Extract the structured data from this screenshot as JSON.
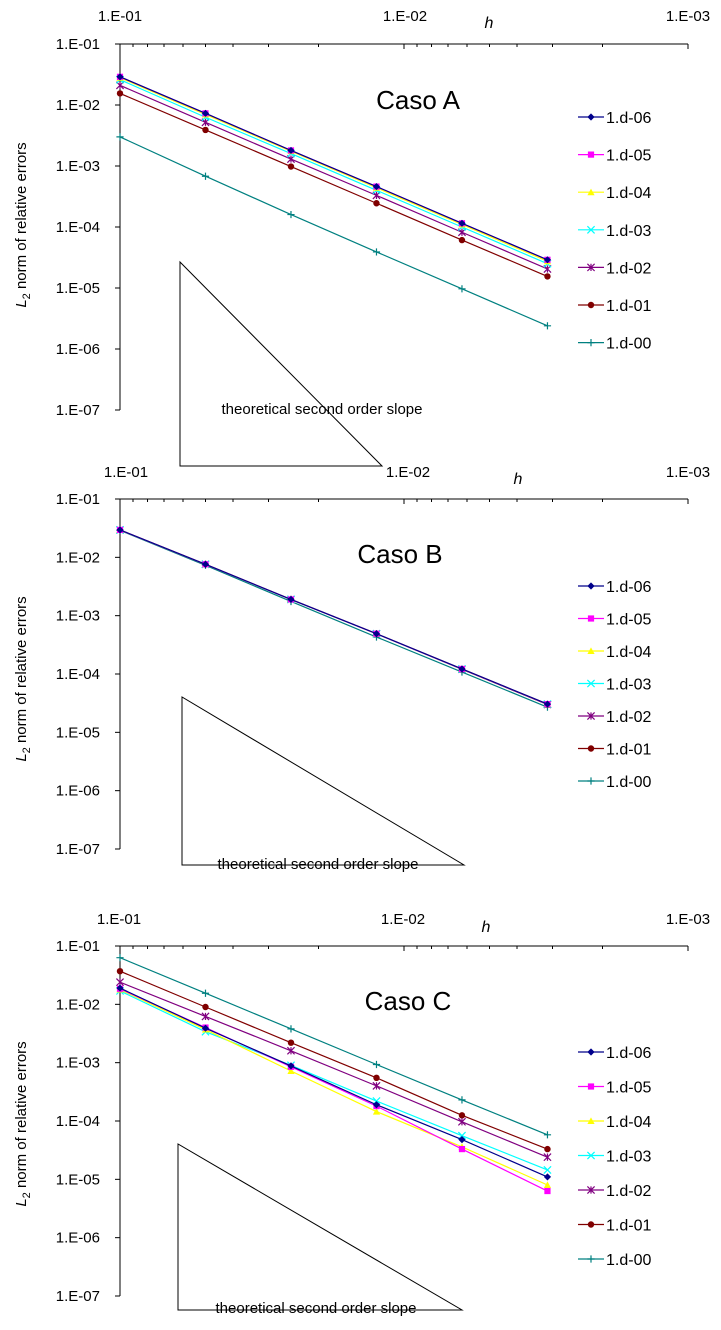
{
  "colors": {
    "1.d-06": "#00008b",
    "1.d-05": "#ff00ff",
    "1.d-04": "#ffff00",
    "1.d-03": "#00ffff",
    "1.d-02": "#800080",
    "1.d-01": "#800000",
    "1.d-00": "#008080"
  },
  "chart_data": [
    {
      "type": "line",
      "title": "Caso A",
      "xlabel": "h",
      "ylabel_main": "L",
      "ylabel_sub": "2",
      "ylabel_rest": " norm of relative errors",
      "x_scale": "log",
      "y_scale": "log",
      "x_reversed": true,
      "xlim": [
        0.1,
        0.001
      ],
      "ylim": [
        1e-07,
        0.1
      ],
      "x_ticks": [
        "1.E-01",
        "1.E-02",
        "1.E-03"
      ],
      "y_ticks": [
        "1.E-01",
        "1.E-02",
        "1.E-03",
        "1.E-04",
        "1.E-05",
        "1.E-06",
        "1.E-07"
      ],
      "slope_label": "theoretical second order slope",
      "x": [
        0.1,
        0.05,
        0.025,
        0.0125,
        0.00625,
        0.003125
      ],
      "series": [
        {
          "name": "1.d-06",
          "marker": "diamond",
          "values": [
            0.029,
            0.0073,
            0.0018,
            0.00046,
            0.000115,
            2.9e-05
          ]
        },
        {
          "name": "1.d-05",
          "marker": "square",
          "values": [
            0.029,
            0.0073,
            0.0018,
            0.00046,
            0.000115,
            2.9e-05
          ]
        },
        {
          "name": "1.d-04",
          "marker": "triangle",
          "values": [
            0.028,
            0.007,
            0.00175,
            0.00044,
            0.00011,
            2.75e-05
          ]
        },
        {
          "name": "1.d-03",
          "marker": "x",
          "values": [
            0.026,
            0.0063,
            0.0016,
            0.0004,
            0.0001,
            2.5e-05
          ]
        },
        {
          "name": "1.d-02",
          "marker": "star",
          "values": [
            0.021,
            0.0052,
            0.0013,
            0.00033,
            8.2e-05,
            2.05e-05
          ]
        },
        {
          "name": "1.d-01",
          "marker": "circle",
          "values": [
            0.0155,
            0.0039,
            0.00098,
            0.000245,
            6.1e-05,
            1.55e-05
          ]
        },
        {
          "name": "1.d-00",
          "marker": "plus",
          "values": [
            0.003,
            0.00068,
            0.00016,
            3.9e-05,
            9.7e-06,
            2.4e-06
          ]
        }
      ]
    },
    {
      "type": "line",
      "title": "Caso B",
      "xlabel": "h",
      "ylabel_main": "L",
      "ylabel_sub": "2",
      "ylabel_rest": " norm of relative errors",
      "x_scale": "log",
      "y_scale": "log",
      "x_reversed": true,
      "xlim": [
        0.1,
        0.001
      ],
      "ylim": [
        1e-07,
        0.1
      ],
      "x_ticks": [
        "1.E-01",
        "1.E-02",
        "1.E-03"
      ],
      "y_ticks": [
        "1.E-01",
        "1.E-02",
        "1.E-03",
        "1.E-04",
        "1.E-05",
        "1.E-06",
        "1.E-07"
      ],
      "slope_label": "theoretical second order slope",
      "x": [
        0.1,
        0.05,
        0.025,
        0.0125,
        0.00625,
        0.003125
      ],
      "series": [
        {
          "name": "1.d-06",
          "marker": "diamond",
          "values": [
            0.0295,
            0.0076,
            0.0019,
            0.00049,
            0.000122,
            3.05e-05
          ]
        },
        {
          "name": "1.d-05",
          "marker": "square",
          "values": [
            0.0295,
            0.0076,
            0.0019,
            0.00049,
            0.000122,
            3.05e-05
          ]
        },
        {
          "name": "1.d-04",
          "marker": "triangle",
          "values": [
            0.0295,
            0.0076,
            0.0019,
            0.00049,
            0.000122,
            3.05e-05
          ]
        },
        {
          "name": "1.d-03",
          "marker": "x",
          "values": [
            0.0295,
            0.0076,
            0.0019,
            0.00049,
            0.000122,
            3.05e-05
          ]
        },
        {
          "name": "1.d-02",
          "marker": "star",
          "values": [
            0.0295,
            0.0076,
            0.0019,
            0.00049,
            0.000121,
            3e-05
          ]
        },
        {
          "name": "1.d-01",
          "marker": "circle",
          "values": [
            0.0295,
            0.0076,
            0.0019,
            0.00049,
            0.000121,
            3e-05
          ]
        },
        {
          "name": "1.d-00",
          "marker": "plus",
          "values": [
            0.029,
            0.0073,
            0.00175,
            0.00043,
            0.000108,
            2.7e-05
          ]
        }
      ]
    },
    {
      "type": "line",
      "title": "Caso C",
      "xlabel": "h",
      "ylabel_main": "L",
      "ylabel_sub": "2",
      "ylabel_rest": " norm of relative errors",
      "x_scale": "log",
      "y_scale": "log",
      "x_reversed": true,
      "xlim": [
        0.1,
        0.001
      ],
      "ylim": [
        1e-07,
        0.1
      ],
      "x_ticks": [
        "1.E-01",
        "1.E-02",
        "1.E-03"
      ],
      "y_ticks": [
        "1.E-01",
        "1.E-02",
        "1.E-03",
        "1.E-04",
        "1.E-05",
        "1.E-06",
        "1.E-07"
      ],
      "slope_label": "theoretical second order slope",
      "x": [
        0.1,
        0.05,
        0.025,
        0.0125,
        0.00625,
        0.003125
      ],
      "series": [
        {
          "name": "1.d-06",
          "marker": "diamond",
          "values": [
            0.019,
            0.0039,
            0.00088,
            0.00019,
            4.8e-05,
            1.1e-05
          ]
        },
        {
          "name": "1.d-05",
          "marker": "square",
          "values": [
            0.0185,
            0.004,
            0.00085,
            0.00018,
            3.3e-05,
            6.3e-06
          ]
        },
        {
          "name": "1.d-04",
          "marker": "triangle",
          "values": [
            0.018,
            0.0037,
            0.00072,
            0.000145,
            3.6e-05,
            8e-06
          ]
        },
        {
          "name": "1.d-03",
          "marker": "x",
          "values": [
            0.017,
            0.0034,
            0.0009,
            0.00022,
            5.6e-05,
            1.45e-05
          ]
        },
        {
          "name": "1.d-02",
          "marker": "star",
          "values": [
            0.024,
            0.0062,
            0.0016,
            0.0004,
            9.7e-05,
            2.4e-05
          ]
        },
        {
          "name": "1.d-01",
          "marker": "circle",
          "values": [
            0.037,
            0.009,
            0.0022,
            0.00055,
            0.000125,
            3.3e-05
          ]
        },
        {
          "name": "1.d-00",
          "marker": "plus",
          "values": [
            0.063,
            0.0155,
            0.0038,
            0.00093,
            0.00023,
            5.8e-05
          ]
        }
      ]
    }
  ]
}
